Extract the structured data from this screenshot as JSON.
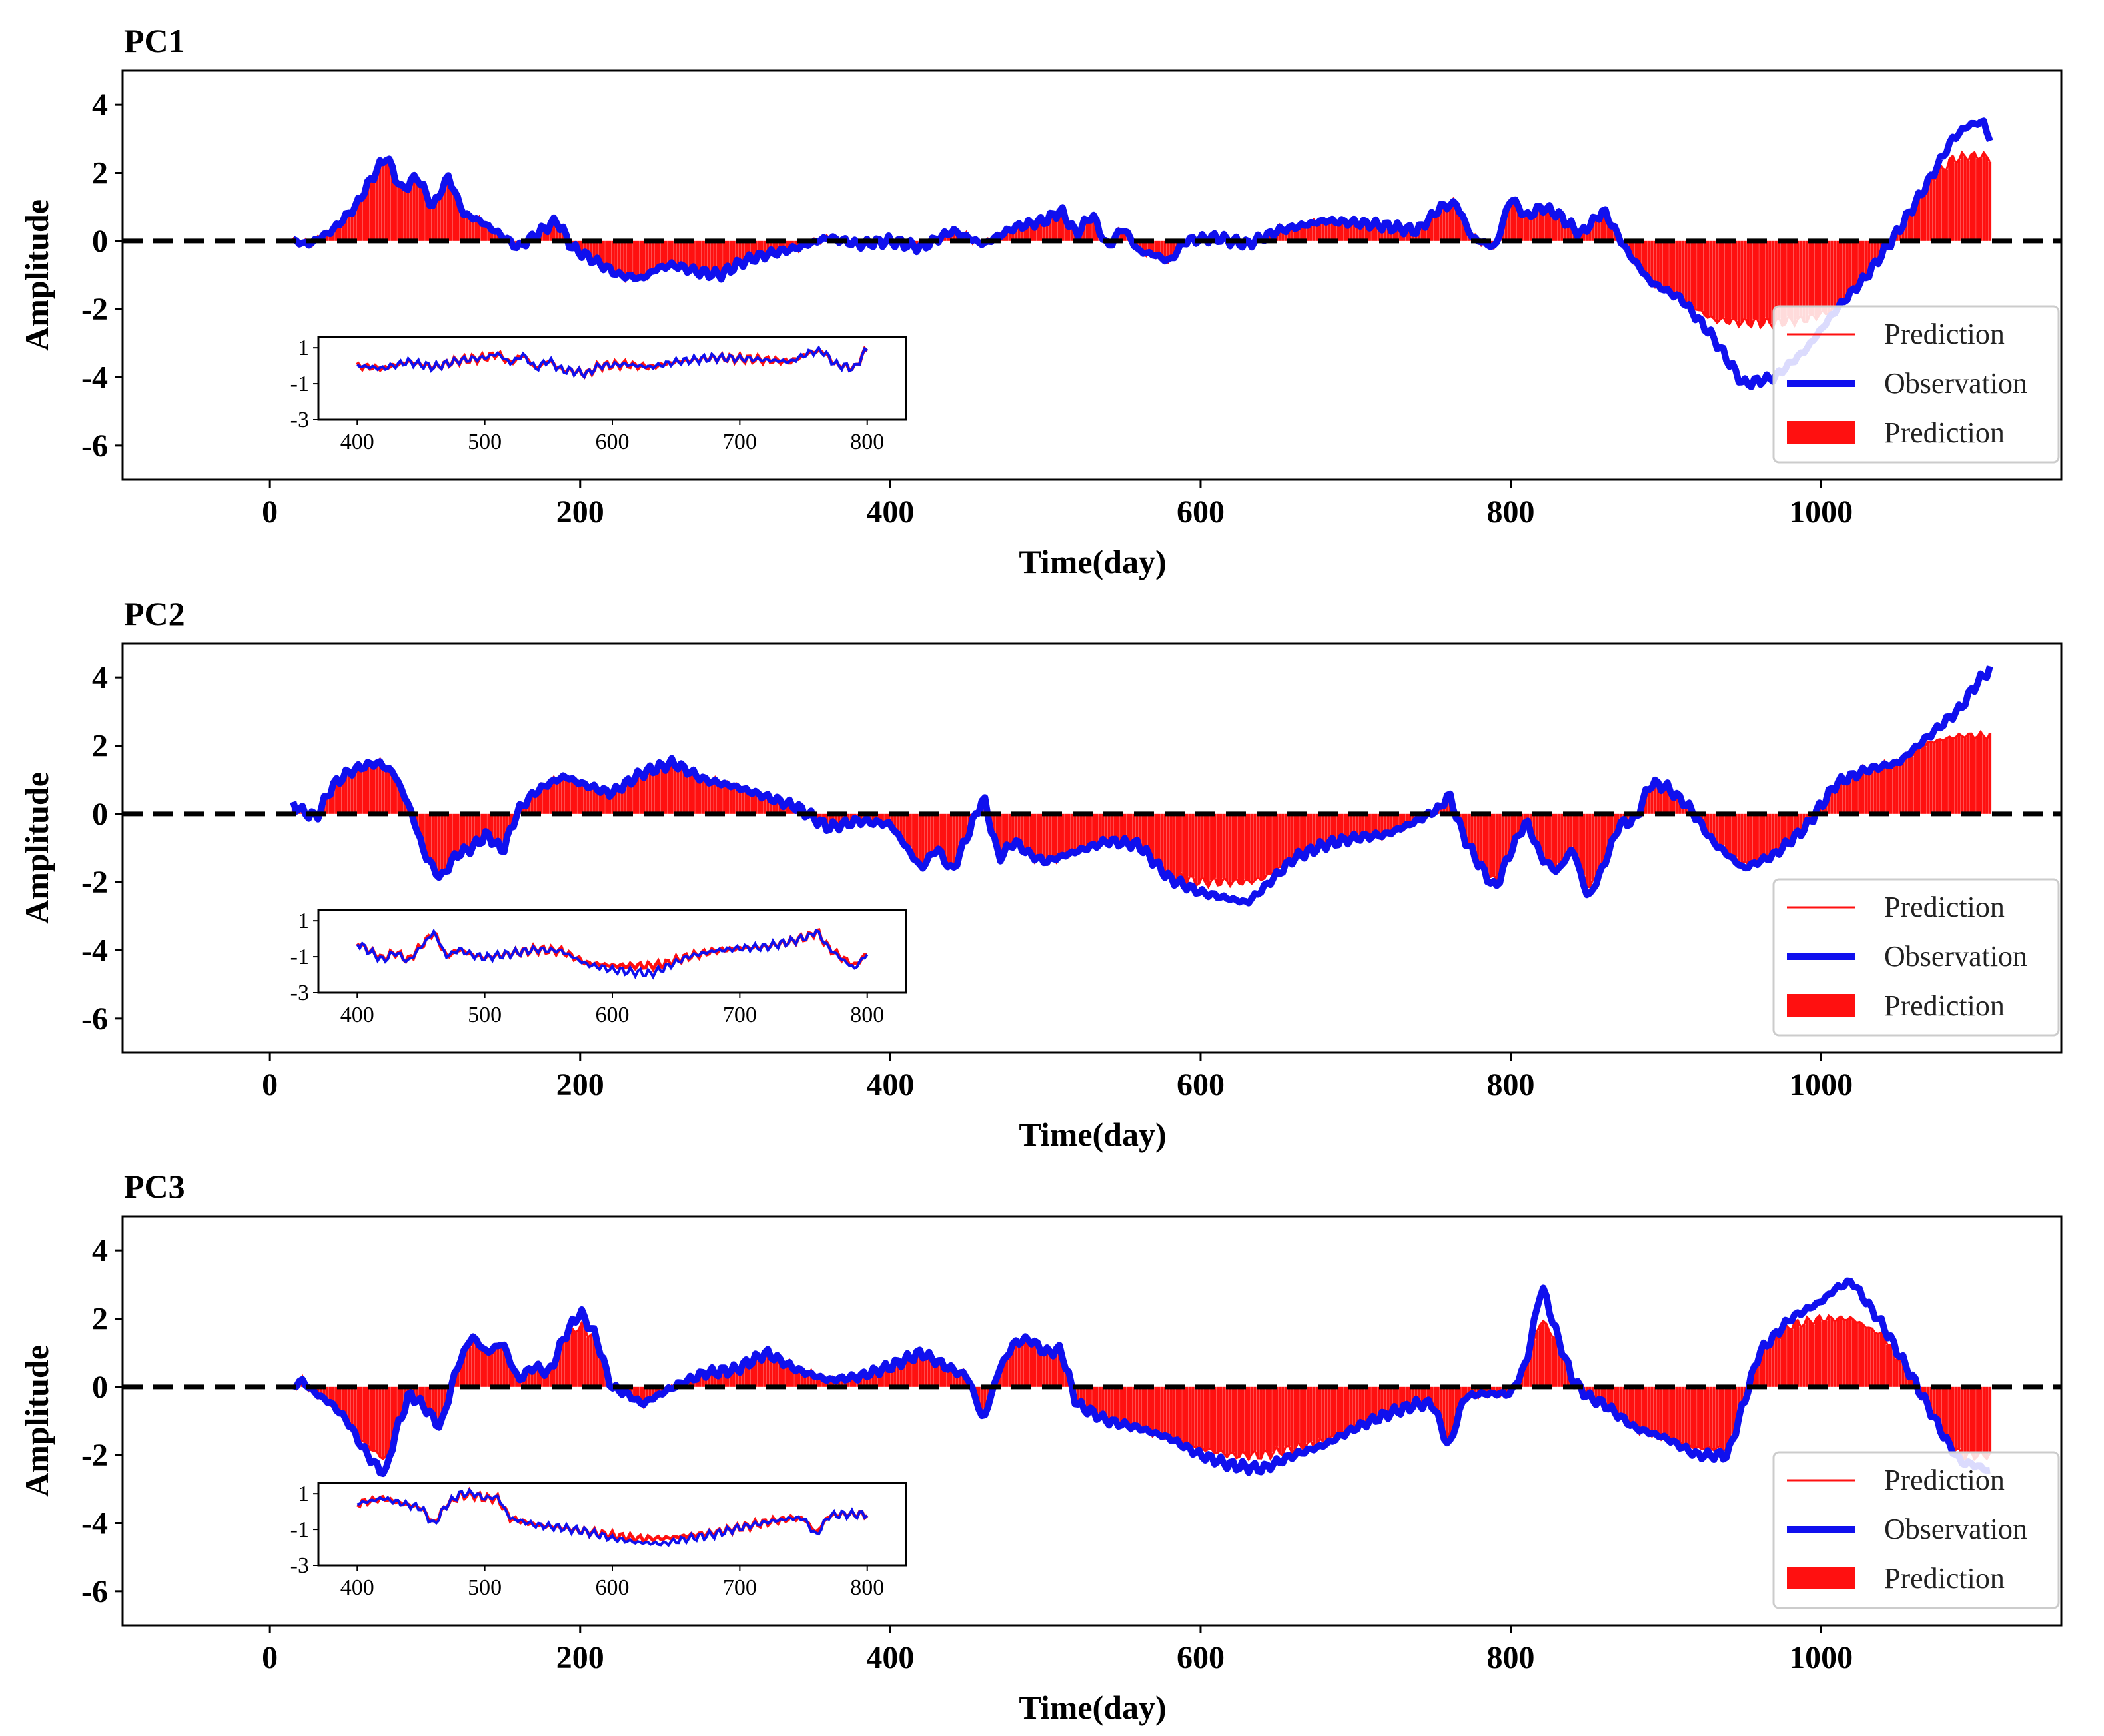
{
  "chart_data": [
    {
      "type": "line",
      "title": "PC1",
      "xlabel": "Time(day)",
      "ylabel": "Amplitude",
      "xlim": [
        -95,
        1155
      ],
      "ylim": [
        -7,
        5
      ],
      "xticks": [
        0,
        200,
        400,
        600,
        800,
        1000
      ],
      "yticks": [
        -6,
        -4,
        -2,
        0,
        2,
        4
      ],
      "baseline": 0,
      "legend": {
        "position": "bottom-right",
        "entries": [
          "Prediction",
          "Observation",
          "Prediction"
        ]
      },
      "series": [
        {
          "name": "Observation",
          "color": "#1010ee",
          "x": [
            15,
            25,
            40,
            55,
            65,
            75,
            85,
            95,
            105,
            115,
            125,
            135,
            145,
            160,
            175,
            185,
            195,
            210,
            225,
            240,
            250,
            260,
            275,
            290,
            305,
            320,
            340,
            360,
            380,
            400,
            420,
            440,
            460,
            480,
            500,
            510,
            520,
            530,
            540,
            550,
            560,
            570,
            580,
            590,
            610,
            630,
            650,
            680,
            710,
            740,
            755,
            765,
            775,
            790,
            800,
            810,
            820,
            830,
            845,
            860,
            875,
            890,
            910,
            930,
            950,
            970,
            990,
            1010,
            1030,
            1050,
            1070,
            1085,
            1095,
            1105,
            1110
          ],
          "y": [
            0,
            -0.1,
            0.3,
            1,
            1.8,
            2.5,
            1.5,
            1.9,
            1.0,
            1.9,
            0.8,
            0.6,
            0.3,
            -0.2,
            0.3,
            0.6,
            -0.2,
            -0.6,
            -1.0,
            -1.1,
            -0.8,
            -0.7,
            -0.9,
            -1.0,
            -0.6,
            -0.4,
            -0.2,
            0.1,
            -0.1,
            0,
            -0.2,
            0.3,
            -0.1,
            0.4,
            0.6,
            0.9,
            0.2,
            0.8,
            -0.2,
            0.4,
            -0.3,
            -0.4,
            -0.6,
            0,
            0.1,
            -0.1,
            0.3,
            0.6,
            0.5,
            0.3,
            1.0,
            1.1,
            0.1,
            -0.2,
            1.3,
            0.7,
            1.0,
            0.8,
            0.2,
            0.9,
            -0.3,
            -1.2,
            -1.7,
            -2.8,
            -4.2,
            -4.0,
            -3.2,
            -2.0,
            -1.0,
            0.3,
            1.8,
            3.0,
            3.4,
            3.5,
            2.8
          ]
        },
        {
          "name": "Prediction",
          "color": "#ff1010",
          "x": [
            15,
            25,
            40,
            55,
            65,
            75,
            85,
            95,
            105,
            115,
            125,
            135,
            145,
            160,
            175,
            185,
            195,
            210,
            225,
            240,
            250,
            260,
            275,
            290,
            305,
            320,
            340,
            360,
            380,
            400,
            420,
            440,
            460,
            480,
            500,
            510,
            520,
            530,
            540,
            550,
            560,
            570,
            580,
            590,
            610,
            630,
            650,
            680,
            710,
            740,
            755,
            765,
            775,
            790,
            800,
            810,
            820,
            830,
            845,
            860,
            875,
            890,
            910,
            930,
            950,
            970,
            990,
            1010,
            1030,
            1050,
            1070,
            1085,
            1095,
            1105,
            1110
          ],
          "y": [
            0,
            -0.1,
            0.3,
            1,
            1.8,
            2.4,
            1.5,
            1.8,
            1.0,
            1.8,
            0.8,
            0.6,
            0.3,
            -0.2,
            0.3,
            0.6,
            -0.2,
            -0.6,
            -1.0,
            -1.1,
            -0.8,
            -0.7,
            -0.9,
            -1.0,
            -0.6,
            -0.4,
            -0.2,
            0.1,
            -0.1,
            0,
            -0.2,
            0.3,
            -0.1,
            0.4,
            0.6,
            0.9,
            0.2,
            0.8,
            -0.2,
            0.4,
            -0.3,
            -0.4,
            -0.6,
            0,
            0.1,
            -0.1,
            0.3,
            0.6,
            0.5,
            0.3,
            1.0,
            1.1,
            0.1,
            -0.2,
            1.3,
            0.7,
            1.0,
            0.8,
            0.2,
            0.9,
            -0.3,
            -1.2,
            -1.7,
            -2.3,
            -2.4,
            -2.4,
            -2.3,
            -2.0,
            -1.0,
            0.3,
            1.8,
            2.4,
            2.5,
            2.5,
            2.4
          ]
        }
      ],
      "inset": {
        "xlim": [
          380,
          820
        ],
        "ylim": [
          -3,
          1.6
        ],
        "xticks": [
          400,
          500,
          600,
          700,
          800
        ],
        "yticks": [
          1,
          -1,
          -3
        ]
      }
    },
    {
      "type": "line",
      "title": "PC2",
      "xlabel": "Time(day)",
      "ylabel": "Amplitude",
      "xlim": [
        -95,
        1155
      ],
      "ylim": [
        -7,
        5
      ],
      "xticks": [
        0,
        200,
        400,
        600,
        800,
        1000
      ],
      "yticks": [
        -6,
        -4,
        -2,
        0,
        2,
        4
      ],
      "baseline": 0,
      "legend": {
        "position": "bottom-right",
        "entries": [
          "Prediction",
          "Observation",
          "Prediction"
        ]
      },
      "series": [
        {
          "name": "Observation",
          "color": "#1010ee",
          "x": [
            15,
            20,
            30,
            40,
            50,
            60,
            70,
            80,
            90,
            100,
            110,
            120,
            130,
            140,
            150,
            160,
            170,
            180,
            190,
            200,
            220,
            240,
            260,
            280,
            300,
            320,
            340,
            360,
            380,
            400,
            420,
            430,
            440,
            460,
            470,
            480,
            490,
            500,
            520,
            540,
            560,
            580,
            600,
            620,
            630,
            640,
            660,
            680,
            700,
            720,
            740,
            755,
            760,
            770,
            780,
            790,
            800,
            810,
            820,
            830,
            840,
            850,
            860,
            870,
            880,
            890,
            900,
            915,
            930,
            950,
            970,
            990,
            1010,
            1030,
            1050,
            1070,
            1090,
            1100,
            1110
          ],
          "y": [
            0.3,
            0.1,
            -0.1,
            0.8,
            1.2,
            1.4,
            1.5,
            1.2,
            0.2,
            -1.2,
            -1.9,
            -1.2,
            -1.0,
            -0.6,
            -1.1,
            0.1,
            0.6,
            0.9,
            1.1,
            0.9,
            0.6,
            1.2,
            1.5,
            1.0,
            0.8,
            0.5,
            0.2,
            -0.4,
            -0.2,
            -0.3,
            -1.6,
            -1.0,
            -1.7,
            0.5,
            -1.3,
            -0.8,
            -1.2,
            -1.4,
            -1.1,
            -0.8,
            -0.9,
            -1.9,
            -2.3,
            -2.5,
            -2.6,
            -2.2,
            -1.3,
            -0.9,
            -0.7,
            -0.6,
            -0.2,
            0.2,
            0.6,
            -0.7,
            -1.5,
            -2.2,
            -1.1,
            -0.2,
            -1.3,
            -1.7,
            -1.0,
            -2.5,
            -1.5,
            -0.3,
            -0.2,
            0.9,
            0.8,
            0.2,
            -0.8,
            -1.6,
            -1.2,
            -0.4,
            0.9,
            1.3,
            1.5,
            2.3,
            3.1,
            3.8,
            4.3
          ]
        },
        {
          "name": "Prediction",
          "color": "#ff1010",
          "x": [
            15,
            20,
            30,
            40,
            50,
            60,
            70,
            80,
            90,
            100,
            110,
            120,
            130,
            140,
            150,
            160,
            170,
            180,
            190,
            200,
            220,
            240,
            260,
            280,
            300,
            320,
            340,
            360,
            380,
            400,
            420,
            430,
            440,
            460,
            470,
            480,
            490,
            500,
            520,
            540,
            560,
            580,
            600,
            620,
            630,
            640,
            660,
            680,
            700,
            720,
            740,
            755,
            760,
            770,
            780,
            790,
            800,
            810,
            820,
            830,
            840,
            850,
            860,
            870,
            880,
            890,
            900,
            915,
            930,
            950,
            970,
            990,
            1010,
            1030,
            1050,
            1070,
            1090,
            1100,
            1110
          ],
          "y": [
            0.3,
            0.1,
            -0.1,
            0.8,
            1.2,
            1.4,
            1.5,
            1.2,
            0.2,
            -1.1,
            -1.8,
            -1.2,
            -1.0,
            -0.6,
            -1.1,
            0.1,
            0.6,
            0.9,
            1.1,
            0.9,
            0.6,
            1.2,
            1.5,
            1.0,
            0.8,
            0.5,
            0.2,
            -0.4,
            -0.2,
            -0.3,
            -1.5,
            -1.0,
            -1.6,
            0.5,
            -1.3,
            -0.8,
            -1.2,
            -1.4,
            -1.1,
            -0.8,
            -0.9,
            -1.8,
            -2.0,
            -2.0,
            -2.0,
            -1.9,
            -1.3,
            -0.9,
            -0.7,
            -0.6,
            -0.2,
            0.2,
            0.6,
            -0.7,
            -1.4,
            -2.0,
            -1.1,
            -0.2,
            -1.3,
            -1.6,
            -1.0,
            -2.2,
            -1.5,
            -0.3,
            -0.2,
            0.9,
            0.8,
            0.2,
            -0.8,
            -1.5,
            -1.2,
            -0.4,
            0.9,
            1.3,
            1.5,
            2.1,
            2.3,
            2.3,
            2.3
          ]
        }
      ],
      "inset": {
        "xlim": [
          380,
          820
        ],
        "ylim": [
          -3,
          1.6
        ],
        "xticks": [
          400,
          500,
          600,
          700,
          800
        ],
        "yticks": [
          1,
          -1,
          -3
        ]
      }
    },
    {
      "type": "line",
      "title": "PC3",
      "xlabel": "Time(day)",
      "ylabel": "Amplitude",
      "xlim": [
        -95,
        1155
      ],
      "ylim": [
        -7,
        5
      ],
      "xticks": [
        0,
        200,
        400,
        600,
        800,
        1000
      ],
      "yticks": [
        -6,
        -4,
        -2,
        0,
        2,
        4
      ],
      "baseline": 0,
      "legend": {
        "position": "bottom-right",
        "entries": [
          "Prediction",
          "Observation",
          "Prediction"
        ]
      },
      "series": [
        {
          "name": "Observation",
          "color": "#1010ee",
          "x": [
            15,
            20,
            30,
            40,
            50,
            60,
            70,
            75,
            80,
            90,
            100,
            110,
            120,
            130,
            140,
            150,
            160,
            170,
            180,
            190,
            200,
            210,
            220,
            230,
            240,
            260,
            280,
            300,
            320,
            340,
            360,
            380,
            400,
            420,
            440,
            450,
            460,
            470,
            480,
            490,
            500,
            510,
            520,
            540,
            560,
            580,
            600,
            620,
            640,
            660,
            680,
            700,
            720,
            740,
            750,
            760,
            770,
            780,
            800,
            810,
            820,
            830,
            840,
            850,
            860,
            880,
            900,
            920,
            940,
            950,
            960,
            980,
            1000,
            1010,
            1020,
            1040,
            1060,
            1080,
            1090,
            1100,
            1110
          ],
          "y": [
            0,
            0.2,
            -0.2,
            -0.5,
            -1.0,
            -1.8,
            -2.4,
            -2.5,
            -1.5,
            -0.2,
            -0.6,
            -1.2,
            0.5,
            1.5,
            1.0,
            1.3,
            0.2,
            0.6,
            0.4,
            1.5,
            2.2,
            1.5,
            0,
            -0.2,
            -0.5,
            0,
            0.4,
            0.5,
            1.0,
            0.5,
            0.2,
            0.3,
            0.6,
            1.0,
            0.5,
            0.3,
            -1.0,
            0.5,
            1.3,
            1.4,
            1.0,
            1.1,
            -0.5,
            -1.0,
            -1.2,
            -1.5,
            -2.0,
            -2.3,
            -2.4,
            -2.0,
            -1.7,
            -1.2,
            -0.8,
            -0.5,
            -0.5,
            -1.8,
            -0.3,
            -0.2,
            -0.2,
            0.7,
            3.0,
            1.5,
            0.2,
            -0.3,
            -0.5,
            -1.2,
            -1.5,
            -2.0,
            -2.0,
            -0.5,
            1.0,
            2.0,
            2.5,
            2.9,
            3.1,
            1.8,
            0.2,
            -1.5,
            -2.2,
            -2.3,
            -2.5
          ]
        },
        {
          "name": "Prediction",
          "color": "#ff1010",
          "x": [
            15,
            20,
            30,
            40,
            50,
            60,
            70,
            75,
            80,
            90,
            100,
            110,
            120,
            130,
            140,
            150,
            160,
            170,
            180,
            190,
            200,
            210,
            220,
            230,
            240,
            260,
            280,
            300,
            320,
            340,
            360,
            380,
            400,
            420,
            440,
            450,
            460,
            470,
            480,
            490,
            500,
            510,
            520,
            540,
            560,
            580,
            600,
            620,
            640,
            660,
            680,
            700,
            720,
            740,
            750,
            760,
            770,
            780,
            800,
            810,
            820,
            830,
            840,
            850,
            860,
            880,
            900,
            920,
            940,
            950,
            960,
            980,
            1000,
            1010,
            1020,
            1040,
            1060,
            1080,
            1090,
            1100,
            1110
          ],
          "y": [
            0,
            0.2,
            -0.2,
            -0.5,
            -1.0,
            -1.6,
            -2.0,
            -2.1,
            -1.5,
            -0.2,
            -0.6,
            -1.1,
            0.5,
            1.4,
            1.0,
            1.2,
            0.2,
            0.6,
            0.4,
            1.4,
            1.8,
            1.4,
            0,
            -0.2,
            -0.5,
            0,
            0.4,
            0.5,
            1.0,
            0.5,
            0.2,
            0.3,
            0.6,
            1.0,
            0.5,
            0.3,
            -0.9,
            0.5,
            1.2,
            1.3,
            1.0,
            1.0,
            -0.5,
            -1.0,
            -1.2,
            -1.5,
            -1.8,
            -2.0,
            -2.0,
            -1.8,
            -1.6,
            -1.2,
            -0.8,
            -0.5,
            -0.5,
            -1.6,
            -0.3,
            -0.2,
            -0.2,
            0.7,
            2.0,
            1.3,
            0.2,
            -0.3,
            -0.5,
            -1.2,
            -1.5,
            -1.8,
            -1.8,
            -0.5,
            1.0,
            1.8,
            2.0,
            2.0,
            2.0,
            1.5,
            0.2,
            -1.5,
            -2.0,
            -2.0,
            -2.0
          ]
        }
      ],
      "inset": {
        "xlim": [
          380,
          820
        ],
        "ylim": [
          -3,
          1.6
        ],
        "xticks": [
          400,
          500,
          600,
          700,
          800
        ],
        "yticks": [
          1,
          -1,
          -3
        ]
      }
    }
  ]
}
